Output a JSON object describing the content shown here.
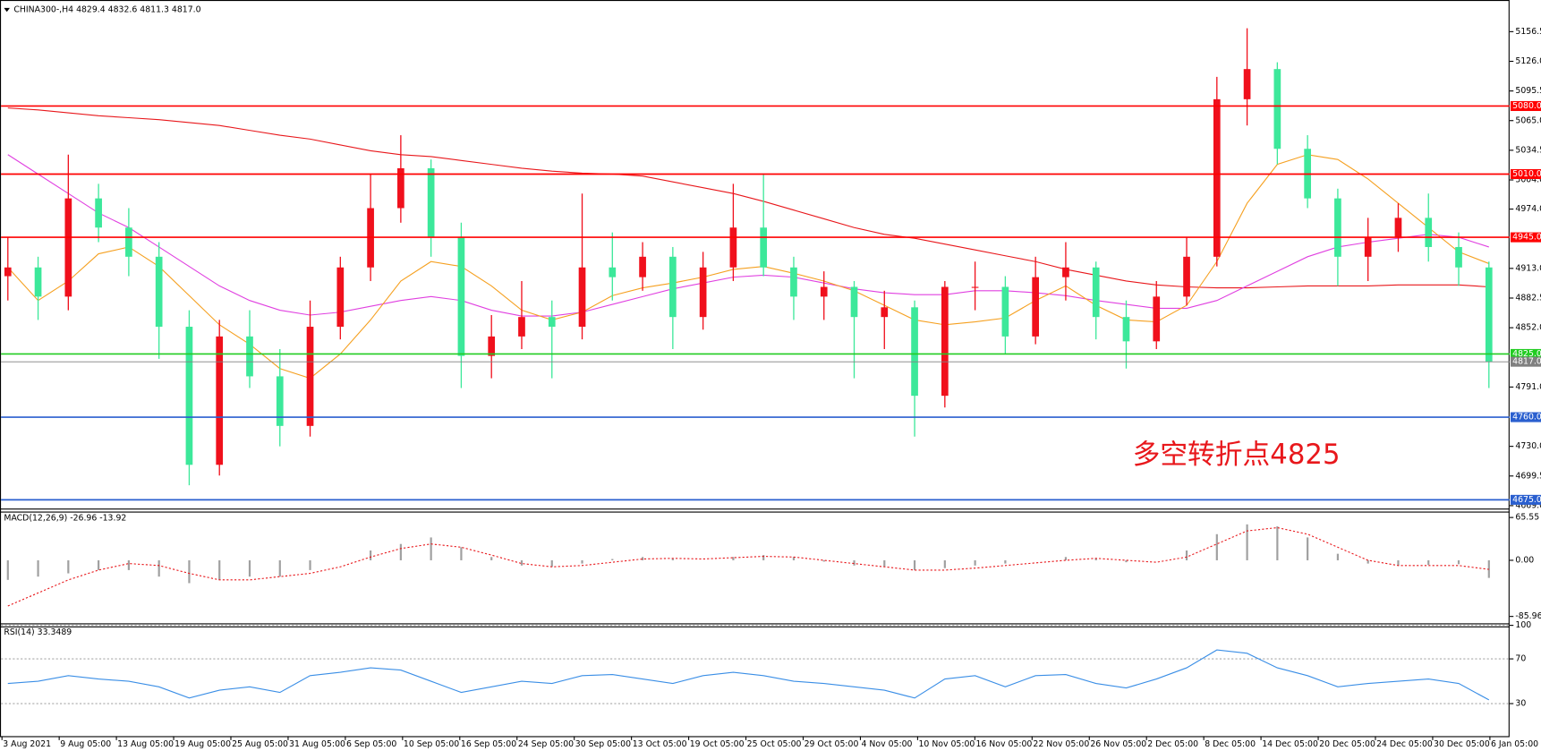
{
  "chart_data": {
    "type": "candlestick",
    "title": "CHINA300-,H4 4829.4 4832.6 4811.3 4817.0",
    "annotation": "多空转折点4825",
    "annotation_color": "#e8171b",
    "up_color": "#f0101c",
    "down_color": "#3ce89a",
    "ylim": [
      4667,
      5186
    ],
    "yticks": [
      {
        "value": 5156.5,
        "label": "5156.5"
      },
      {
        "value": 5126,
        "label": "5126.0"
      },
      {
        "value": 5095.5,
        "label": "5095.5"
      },
      {
        "value": 5065,
        "label": "5065.0"
      },
      {
        "value": 5034.5,
        "label": "5034.5"
      },
      {
        "value": 5004,
        "label": "5004.0"
      },
      {
        "value": 4974,
        "label": "4974.0"
      },
      {
        "value": 4913,
        "label": "4913.0"
      },
      {
        "value": 4882.5,
        "label": "4882.5"
      },
      {
        "value": 4852,
        "label": "4852.0"
      },
      {
        "value": 4791,
        "label": "4791.0"
      },
      {
        "value": 4730,
        "label": "4730.0"
      },
      {
        "value": 4699.5,
        "label": "4699.5"
      },
      {
        "value": 4669,
        "label": "4669.0"
      }
    ],
    "xlabels": [
      "3 Aug 2021",
      "9 Aug 05:00",
      "13 Aug 05:00",
      "19 Aug 05:00",
      "25 Aug 05:00",
      "31 Aug 05:00",
      "6 Sep 05:00",
      "10 Sep 05:00",
      "16 Sep 05:00",
      "24 Sep 05:00",
      "30 Sep 05:00",
      "13 Oct 05:00",
      "19 Oct 05:00",
      "25 Oct 05:00",
      "29 Oct 05:00",
      "4 Nov 05:00",
      "10 Nov 05:00",
      "16 Nov 05:00",
      "22 Nov 05:00",
      "26 Nov 05:00",
      "2 Dec 05:00",
      "8 Dec 05:00",
      "14 Dec 05:00",
      "20 Dec 05:00",
      "24 Dec 05:00",
      "30 Dec 05:00",
      "6 Jan 05:00"
    ],
    "ohlc": [
      [
        4905,
        4945,
        4880,
        4914
      ],
      [
        4914,
        4925,
        4860,
        4884
      ],
      [
        4884,
        5030,
        4870,
        4985
      ],
      [
        4985,
        5000,
        4940,
        4955
      ],
      [
        4955,
        4975,
        4905,
        4925
      ],
      [
        4925,
        4940,
        4820,
        4853
      ],
      [
        4853,
        4870,
        4690,
        4711
      ],
      [
        4711,
        4860,
        4700,
        4843
      ],
      [
        4843,
        4870,
        4790,
        4802
      ],
      [
        4802,
        4830,
        4730,
        4751
      ],
      [
        4751,
        4880,
        4740,
        4853
      ],
      [
        4853,
        4925,
        4840,
        4914
      ],
      [
        4914,
        5010,
        4900,
        4975
      ],
      [
        4975,
        5050,
        4960,
        5016
      ],
      [
        5016,
        5025,
        4925,
        4945
      ],
      [
        4945,
        4960,
        4790,
        4823
      ],
      [
        4823,
        4865,
        4800,
        4843
      ],
      [
        4843,
        4900,
        4830,
        4863
      ],
      [
        4863,
        4880,
        4800,
        4853
      ],
      [
        4853,
        4990,
        4840,
        4914
      ],
      [
        4914,
        4950,
        4880,
        4904
      ],
      [
        4904,
        4940,
        4890,
        4925
      ],
      [
        4925,
        4935,
        4830,
        4863
      ],
      [
        4863,
        4930,
        4850,
        4914
      ],
      [
        4914,
        5000,
        4900,
        4955
      ],
      [
        4955,
        5010,
        4905,
        4914
      ],
      [
        4914,
        4925,
        4860,
        4884
      ],
      [
        4884,
        4910,
        4860,
        4894
      ],
      [
        4894,
        4900,
        4800,
        4863
      ],
      [
        4863,
        4890,
        4830,
        4873
      ],
      [
        4873,
        4880,
        4740,
        4782
      ],
      [
        4782,
        4900,
        4770,
        4894
      ],
      [
        4894,
        4920,
        4870,
        4894
      ],
      [
        4894,
        4905,
        4825,
        4843
      ],
      [
        4843,
        4925,
        4835,
        4904
      ],
      [
        4904,
        4940,
        4880,
        4914
      ],
      [
        4914,
        4920,
        4840,
        4863
      ],
      [
        4863,
        4880,
        4810,
        4838
      ],
      [
        4838,
        4900,
        4830,
        4884
      ],
      [
        4884,
        4945,
        4875,
        4925
      ],
      [
        4925,
        5110,
        4915,
        5087
      ],
      [
        5087,
        5160,
        5060,
        5118
      ],
      [
        5118,
        5125,
        5020,
        5036
      ],
      [
        5036,
        5050,
        4975,
        4985
      ],
      [
        4985,
        4995,
        4895,
        4925
      ],
      [
        4925,
        4965,
        4900,
        4945
      ],
      [
        4945,
        4980,
        4930,
        4965
      ],
      [
        4965,
        4990,
        4920,
        4935
      ],
      [
        4935,
        4950,
        4895,
        4914
      ],
      [
        4914,
        4920,
        4790,
        4817
      ]
    ],
    "ma": [
      {
        "color": "#e8171b",
        "values": [
          5078,
          5076,
          5073,
          5070,
          5068,
          5066,
          5063,
          5060,
          5055,
          5050,
          5046,
          5040,
          5034,
          5030,
          5028,
          5024,
          5020,
          5016,
          5013,
          5011,
          5010,
          5008,
          5002,
          4996,
          4990,
          4982,
          4973,
          4964,
          4955,
          4948,
          4944,
          4938,
          4932,
          4926,
          4920,
          4912,
          4906,
          4900,
          4896,
          4894,
          4893,
          4893,
          4894,
          4895,
          4895,
          4895,
          4896,
          4896,
          4896,
          4894
        ]
      },
      {
        "color": "#e040e0",
        "values": [
          5030,
          5010,
          4990,
          4970,
          4955,
          4935,
          4915,
          4895,
          4880,
          4870,
          4865,
          4868,
          4874,
          4880,
          4884,
          4880,
          4870,
          4864,
          4864,
          4868,
          4876,
          4884,
          4892,
          4898,
          4904,
          4906,
          4904,
          4898,
          4892,
          4888,
          4886,
          4886,
          4890,
          4890,
          4888,
          4885,
          4880,
          4876,
          4872,
          4872,
          4880,
          4895,
          4910,
          4925,
          4935,
          4940,
          4944,
          4948,
          4945,
          4935
        ]
      },
      {
        "color": "#f5a020",
        "values": [
          4914,
          4880,
          4900,
          4928,
          4935,
          4915,
          4885,
          4855,
          4835,
          4810,
          4800,
          4825,
          4860,
          4900,
          4920,
          4915,
          4895,
          4870,
          4860,
          4868,
          4885,
          4893,
          4898,
          4904,
          4912,
          4915,
          4908,
          4900,
          4890,
          4875,
          4860,
          4855,
          4858,
          4862,
          4880,
          4895,
          4875,
          4860,
          4858,
          4875,
          4920,
          4980,
          5020,
          5030,
          5025,
          5005,
          4980,
          4955,
          4930,
          4918
        ]
      }
    ],
    "levels": [
      {
        "value": 5080,
        "label": "5080.0",
        "color": "#ff0000"
      },
      {
        "value": 5010,
        "label": "5010.0",
        "color": "#ff0000"
      },
      {
        "value": 4945,
        "label": "4945.0",
        "color": "#ff0000"
      },
      {
        "value": 4825,
        "label": "4825.0",
        "color": "#22cc22"
      },
      {
        "value": 4760,
        "label": "4760.0",
        "color": "#2a5fcf"
      },
      {
        "value": 4675,
        "label": "4675.0",
        "color": "#2a5fcf"
      }
    ],
    "last": {
      "value": 4817,
      "label": "4817.0",
      "color": "#808080"
    },
    "macd": {
      "title": "MACD(12,26,9) -26.96 -13.92",
      "ylim": [
        -85.96,
        65.55
      ],
      "yticks": [
        {
          "value": 65.55,
          "label": "65.55"
        },
        {
          "value": 0,
          "label": "0.00"
        },
        {
          "value": -85.96,
          "label": "-85.96"
        }
      ],
      "hist_color": "#a0a0a0",
      "signal_color": "#e8171b",
      "hist": [
        -30,
        -25,
        -20,
        -15,
        -15,
        -25,
        -35,
        -30,
        -25,
        -25,
        -15,
        0,
        15,
        25,
        35,
        20,
        5,
        -8,
        -10,
        -5,
        2,
        5,
        2,
        0,
        5,
        8,
        5,
        -2,
        -8,
        -10,
        -15,
        -12,
        -8,
        -5,
        0,
        5,
        3,
        -3,
        0,
        15,
        40,
        55,
        52,
        35,
        10,
        -5,
        -8,
        -7,
        -6,
        -26.96
      ],
      "signal": [
        -70,
        -50,
        -30,
        -15,
        -5,
        -8,
        -20,
        -30,
        -30,
        -25,
        -20,
        -10,
        5,
        18,
        25,
        20,
        8,
        -5,
        -10,
        -8,
        -3,
        2,
        3,
        2,
        4,
        6,
        5,
        0,
        -5,
        -10,
        -15,
        -15,
        -12,
        -8,
        -4,
        0,
        3,
        0,
        -3,
        5,
        25,
        45,
        50,
        40,
        20,
        0,
        -8,
        -8,
        -8,
        -13.92
      ]
    },
    "rsi": {
      "title": "RSI(14) 33.3489",
      "ylim": [
        0,
        100
      ],
      "yticks": [
        100,
        70,
        30
      ],
      "color": "#3a8ee6",
      "values": [
        48,
        50,
        55,
        52,
        50,
        45,
        35,
        42,
        45,
        40,
        55,
        58,
        62,
        60,
        50,
        40,
        45,
        50,
        48,
        55,
        56,
        52,
        48,
        55,
        58,
        55,
        50,
        48,
        45,
        42,
        35,
        52,
        55,
        45,
        55,
        56,
        48,
        44,
        52,
        62,
        78,
        75,
        62,
        55,
        45,
        48,
        50,
        52,
        48,
        33.3489
      ]
    }
  }
}
